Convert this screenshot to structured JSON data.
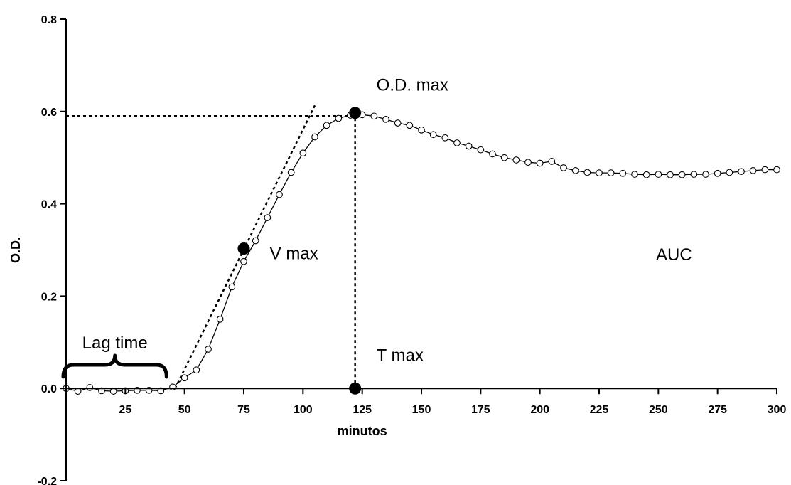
{
  "chart_data": {
    "type": "line",
    "title": "",
    "xlabel": "minutos",
    "ylabel": "O.D.",
    "xlim": [
      0,
      300
    ],
    "ylim": [
      -0.2,
      0.8
    ],
    "grid": false,
    "x_ticks": [
      25,
      50,
      75,
      100,
      125,
      150,
      175,
      200,
      225,
      250,
      275,
      300
    ],
    "y_ticks": [
      -0.2,
      0.0,
      0.2,
      0.4,
      0.6,
      0.8
    ],
    "x_tick_labels": [
      "25",
      "50",
      "75",
      "100",
      "125",
      "150",
      "175",
      "200",
      "225",
      "250",
      "275",
      "300"
    ],
    "y_tick_labels": [
      "-0.2",
      "0.0",
      "0.2",
      "0.4",
      "0.6",
      "0.8"
    ],
    "series": [
      {
        "x": [
          0,
          5,
          10,
          15,
          20,
          25,
          30,
          35,
          40,
          45,
          50,
          55,
          60,
          65,
          70,
          75,
          80,
          85,
          90,
          95,
          100,
          105,
          110,
          115,
          120,
          125,
          130,
          135,
          140,
          145,
          150,
          155,
          160,
          165,
          170,
          175,
          180,
          185,
          190,
          195,
          200,
          205,
          210,
          215,
          220,
          225,
          230,
          235,
          240,
          245,
          250,
          255,
          260,
          265,
          270,
          275,
          280,
          285,
          290,
          295,
          300
        ],
        "y": [
          0.0,
          -0.006,
          0.002,
          -0.005,
          -0.006,
          -0.005,
          -0.004,
          -0.004,
          -0.005,
          0.003,
          0.023,
          0.04,
          0.085,
          0.15,
          0.22,
          0.275,
          0.32,
          0.37,
          0.42,
          0.468,
          0.51,
          0.545,
          0.57,
          0.585,
          0.592,
          0.593,
          0.59,
          0.583,
          0.575,
          0.57,
          0.56,
          0.55,
          0.543,
          0.532,
          0.525,
          0.517,
          0.508,
          0.5,
          0.495,
          0.49,
          0.488,
          0.492,
          0.478,
          0.472,
          0.468,
          0.467,
          0.467,
          0.466,
          0.464,
          0.463,
          0.464,
          0.463,
          0.463,
          0.464,
          0.464,
          0.466,
          0.468,
          0.47,
          0.472,
          0.474,
          0.474
        ]
      }
    ],
    "key_points": [
      {
        "label": "V max",
        "x": 75,
        "y": 0.303
      },
      {
        "label": "O.D. max",
        "x": 122,
        "y": 0.597
      },
      {
        "label": "T max",
        "x": 122,
        "y": 0.0
      }
    ],
    "guide_lines": {
      "tangent": {
        "from": [
          46,
          0.0
        ],
        "to": [
          105,
          0.613
        ]
      },
      "od_max_horizontal": {
        "from": [
          0,
          0.59
        ],
        "to": [
          122,
          0.59
        ]
      },
      "t_max_vertical": {
        "from": [
          122,
          0.0
        ],
        "to": [
          122,
          0.59
        ]
      }
    },
    "lag_time": {
      "from": 0,
      "to": 40
    },
    "annotations": {
      "lag_time": "Lag time",
      "v_max": "V max",
      "od_max": "O.D. max",
      "t_max": "T max",
      "auc": "AUC"
    }
  }
}
